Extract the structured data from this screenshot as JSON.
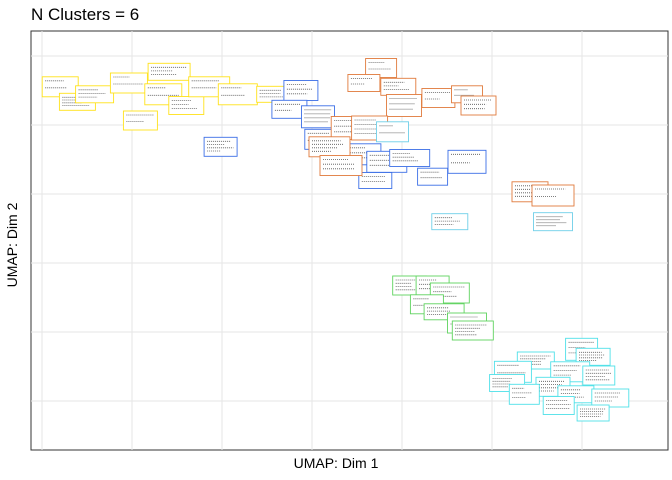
{
  "title": "N Clusters = 6",
  "chart_data": {
    "type": "scatter",
    "title": "N Clusters = 6",
    "xlabel": "UMAP: Dim 1",
    "ylabel": "UMAP: Dim 2",
    "x_ticks_labeled": false,
    "y_ticks_labeled": false,
    "grid": true,
    "legend": "none",
    "xlim": [
      0,
      100
    ],
    "ylim": [
      0,
      100
    ],
    "marker": "thumbnail image",
    "series": [
      {
        "color": "#ffe21a",
        "points": [
          {
            "x": 3,
            "y": 91
          },
          {
            "x": 6,
            "y": 87
          },
          {
            "x": 9,
            "y": 89
          },
          {
            "x": 15,
            "y": 92
          },
          {
            "x": 22,
            "y": 95
          },
          {
            "x": 21,
            "y": 89
          },
          {
            "x": 25,
            "y": 86
          },
          {
            "x": 17,
            "y": 82
          },
          {
            "x": 29,
            "y": 91
          },
          {
            "x": 34,
            "y": 89
          },
          {
            "x": 40,
            "y": 89
          }
        ]
      },
      {
        "color": "#3c6fe6",
        "points": [
          {
            "x": 45,
            "y": 90
          },
          {
            "x": 43,
            "y": 85
          },
          {
            "x": 48,
            "y": 83
          },
          {
            "x": 49,
            "y": 77
          },
          {
            "x": 31,
            "y": 75
          },
          {
            "x": 56,
            "y": 73
          },
          {
            "x": 60,
            "y": 71
          },
          {
            "x": 58,
            "y": 66
          },
          {
            "x": 74,
            "y": 71
          },
          {
            "x": 68,
            "y": 67
          },
          {
            "x": 64,
            "y": 72
          }
        ]
      },
      {
        "color": "#e07a3c",
        "points": [
          {
            "x": 59,
            "y": 96
          },
          {
            "x": 56,
            "y": 92
          },
          {
            "x": 62,
            "y": 91
          },
          {
            "x": 63,
            "y": 86
          },
          {
            "x": 69,
            "y": 88
          },
          {
            "x": 74,
            "y": 89
          },
          {
            "x": 76,
            "y": 86
          },
          {
            "x": 53,
            "y": 80
          },
          {
            "x": 57,
            "y": 80
          },
          {
            "x": 50,
            "y": 75
          },
          {
            "x": 52,
            "y": 70
          },
          {
            "x": 85,
            "y": 63
          },
          {
            "x": 89,
            "y": 62
          }
        ]
      },
      {
        "color": "#6ecfe8",
        "points": [
          {
            "x": 61,
            "y": 79
          },
          {
            "x": 71,
            "y": 55
          },
          {
            "x": 89,
            "y": 55
          }
        ]
      },
      {
        "color": "#5fd35f",
        "points": [
          {
            "x": 64,
            "y": 38
          },
          {
            "x": 68,
            "y": 38
          },
          {
            "x": 71,
            "y": 36
          },
          {
            "x": 67,
            "y": 33
          },
          {
            "x": 70,
            "y": 31
          },
          {
            "x": 74,
            "y": 28
          },
          {
            "x": 75,
            "y": 26
          }
        ]
      },
      {
        "color": "#4fe0e8",
        "points": [
          {
            "x": 94,
            "y": 21
          },
          {
            "x": 96,
            "y": 19
          },
          {
            "x": 86,
            "y": 18
          },
          {
            "x": 82,
            "y": 15
          },
          {
            "x": 92,
            "y": 15
          },
          {
            "x": 97,
            "y": 14
          },
          {
            "x": 81,
            "y": 12
          },
          {
            "x": 89,
            "y": 11
          },
          {
            "x": 93,
            "y": 9
          },
          {
            "x": 99,
            "y": 8
          },
          {
            "x": 84,
            "y": 9
          },
          {
            "x": 90,
            "y": 6
          },
          {
            "x": 96,
            "y": 4
          }
        ]
      }
    ]
  }
}
